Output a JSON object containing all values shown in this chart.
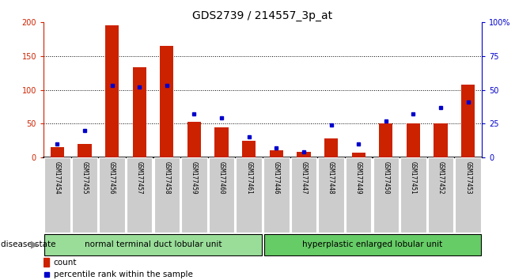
{
  "title": "GDS2739 / 214557_3p_at",
  "samples": [
    "GSM177454",
    "GSM177455",
    "GSM177456",
    "GSM177457",
    "GSM177458",
    "GSM177459",
    "GSM177460",
    "GSM177461",
    "GSM177446",
    "GSM177447",
    "GSM177448",
    "GSM177449",
    "GSM177450",
    "GSM177451",
    "GSM177452",
    "GSM177453"
  ],
  "count": [
    15,
    20,
    195,
    133,
    165,
    53,
    45,
    25,
    10,
    8,
    28,
    7,
    50,
    50,
    50,
    108
  ],
  "percentile": [
    10,
    20,
    53,
    52,
    53,
    32,
    29,
    15,
    7,
    4,
    24,
    10,
    27,
    32,
    37,
    41
  ],
  "group1_label": "normal terminal duct lobular unit",
  "group2_label": "hyperplastic enlarged lobular unit",
  "group1_count": 8,
  "group2_count": 8,
  "disease_state_label": "disease state",
  "left_yticks": [
    0,
    50,
    100,
    150,
    200
  ],
  "right_yticks": [
    0,
    25,
    50,
    75,
    100
  ],
  "right_yticklabels": [
    "0",
    "25",
    "50",
    "75",
    "100%"
  ],
  "ylim_left": [
    0,
    200
  ],
  "ylim_right": [
    0,
    100
  ],
  "bar_color": "#cc2200",
  "dot_color": "#0000cc",
  "title_fontsize": 10,
  "background_color": "#ffffff",
  "group1_color": "#99dd99",
  "group2_color": "#66cc66",
  "xticklabel_bg": "#cccccc",
  "bar_width": 0.5
}
